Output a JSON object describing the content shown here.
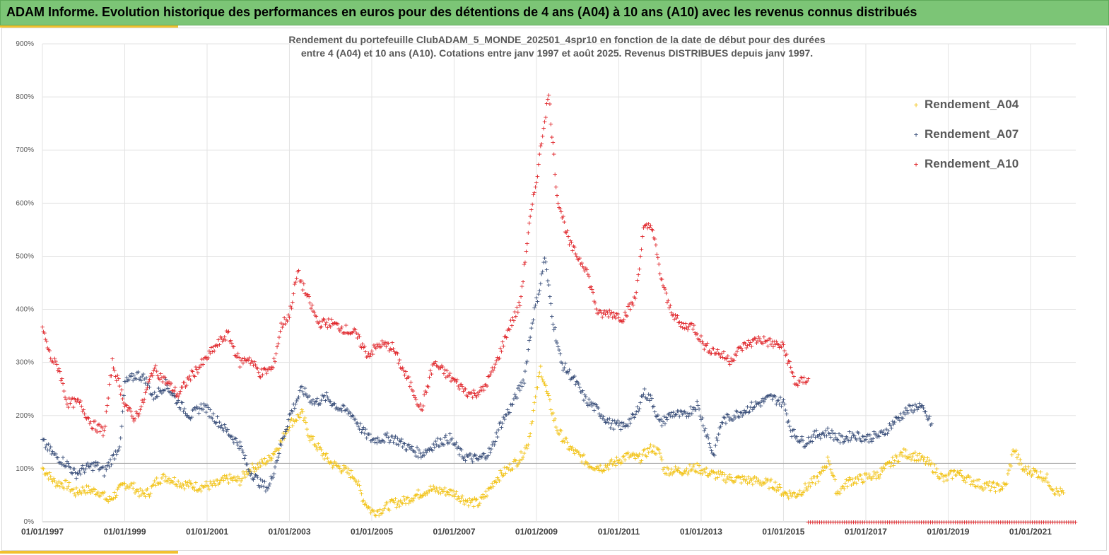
{
  "header": {
    "title": "ADAM Informe. Evolution historique des performances en euros pour des détentions de 4 ans (A04) à 10 ans (A10) avec les revenus connus distribués"
  },
  "chart_data": {
    "type": "scatter",
    "title_line1": "Rendement du portefeuille ClubADAM_5_MONDE_202501_4spr10  en fonction de la date de début pour des durées",
    "title_line2": "entre 4 (A04) et 10 ans (A10). Cotations entre janv 1997 et août 2025. Revenus DISTRIBUES depuis janv 1997.",
    "y_ticks": [
      "0%",
      "100%",
      "200%",
      "300%",
      "400%",
      "500%",
      "600%",
      "700%",
      "800%",
      "900%"
    ],
    "ylim": [
      0,
      900
    ],
    "x_ticks": [
      "01/01/1997",
      "01/01/1999",
      "01/01/2001",
      "01/01/2003",
      "01/01/2005",
      "01/01/2007",
      "01/01/2009",
      "01/01/2011",
      "01/01/2013",
      "01/01/2015",
      "01/01/2017",
      "01/01/2019",
      "01/01/2021"
    ],
    "xlim": [
      1997.0,
      2022.1
    ],
    "grid": true,
    "legend_position": "top-right",
    "series": [
      {
        "name": "Rendement_A04",
        "color": "#f2c318",
        "points": [
          [
            1997.0,
            102
          ],
          [
            1997.3,
            75
          ],
          [
            1997.6,
            70
          ],
          [
            1997.8,
            55
          ],
          [
            1998.0,
            62
          ],
          [
            1998.4,
            57
          ],
          [
            1998.6,
            40
          ],
          [
            1998.8,
            55
          ],
          [
            1999.0,
            72
          ],
          [
            1999.2,
            68
          ],
          [
            1999.4,
            52
          ],
          [
            1999.6,
            57
          ],
          [
            1999.8,
            80
          ],
          [
            2000.0,
            85
          ],
          [
            2000.4,
            72
          ],
          [
            2000.8,
            67
          ],
          [
            2001.2,
            70
          ],
          [
            2001.5,
            82
          ],
          [
            2001.8,
            78
          ],
          [
            2002.0,
            98
          ],
          [
            2002.2,
            105
          ],
          [
            2002.5,
            118
          ],
          [
            2002.8,
            152
          ],
          [
            2003.0,
            185
          ],
          [
            2003.3,
            205
          ],
          [
            2003.5,
            160
          ],
          [
            2003.8,
            130
          ],
          [
            2004.0,
            112
          ],
          [
            2004.3,
            100
          ],
          [
            2004.6,
            85
          ],
          [
            2004.8,
            42
          ],
          [
            2005.0,
            20
          ],
          [
            2005.2,
            22
          ],
          [
            2005.5,
            35
          ],
          [
            2005.8,
            40
          ],
          [
            2006.0,
            48
          ],
          [
            2006.4,
            62
          ],
          [
            2006.8,
            58
          ],
          [
            2007.0,
            55
          ],
          [
            2007.3,
            40
          ],
          [
            2007.6,
            35
          ],
          [
            2007.8,
            55
          ],
          [
            2008.0,
            80
          ],
          [
            2008.3,
            100
          ],
          [
            2008.6,
            120
          ],
          [
            2008.8,
            150
          ],
          [
            2009.0,
            245
          ],
          [
            2009.1,
            290
          ],
          [
            2009.3,
            230
          ],
          [
            2009.5,
            175
          ],
          [
            2009.8,
            140
          ],
          [
            2010.0,
            128
          ],
          [
            2010.3,
            108
          ],
          [
            2010.6,
            103
          ],
          [
            2010.9,
            112
          ],
          [
            2011.2,
            125
          ],
          [
            2011.5,
            120
          ],
          [
            2011.8,
            140
          ],
          [
            2012.0,
            130
          ],
          [
            2012.1,
            98
          ],
          [
            2012.5,
            97
          ],
          [
            2012.9,
            102
          ],
          [
            2013.2,
            92
          ],
          [
            2013.6,
            84
          ],
          [
            2014.0,
            80
          ],
          [
            2014.4,
            77
          ],
          [
            2014.8,
            70
          ],
          [
            2015.0,
            55
          ],
          [
            2015.3,
            52
          ],
          [
            2015.6,
            68
          ],
          [
            2015.9,
            88
          ],
          [
            2016.1,
            120
          ],
          [
            2016.3,
            55
          ],
          [
            2016.6,
            78
          ],
          [
            2016.9,
            82
          ],
          [
            2017.3,
            90
          ],
          [
            2017.6,
            110
          ],
          [
            2017.9,
            130
          ],
          [
            2018.2,
            125
          ],
          [
            2018.5,
            112
          ],
          [
            2018.7,
            98
          ],
          [
            2018.9,
            80
          ],
          [
            2019.2,
            95
          ],
          [
            2019.5,
            80
          ],
          [
            2019.8,
            70
          ],
          [
            2020.2,
            65
          ],
          [
            2020.4,
            68
          ],
          [
            2020.6,
            140
          ],
          [
            2020.8,
            100
          ],
          [
            2021.1,
            95
          ],
          [
            2021.4,
            82
          ],
          [
            2021.6,
            58
          ],
          [
            2021.8,
            55
          ]
        ]
      },
      {
        "name": "Rendement_A07",
        "color": "#3a4f7a",
        "points": [
          [
            1997.0,
            152
          ],
          [
            1997.3,
            125
          ],
          [
            1997.6,
            110
          ],
          [
            1997.8,
            90
          ],
          [
            1998.0,
            100
          ],
          [
            1998.3,
            108
          ],
          [
            1998.5,
            95
          ],
          [
            1998.7,
            120
          ],
          [
            1998.9,
            150
          ],
          [
            1999.0,
            262
          ],
          [
            1999.3,
            278
          ],
          [
            1999.5,
            270
          ],
          [
            1999.7,
            235
          ],
          [
            2000.0,
            260
          ],
          [
            2000.3,
            225
          ],
          [
            2000.6,
            200
          ],
          [
            2000.9,
            220
          ],
          [
            2001.2,
            195
          ],
          [
            2001.5,
            170
          ],
          [
            2001.8,
            145
          ],
          [
            2002.0,
            100
          ],
          [
            2002.3,
            72
          ],
          [
            2002.5,
            65
          ],
          [
            2002.7,
            120
          ],
          [
            2003.0,
            200
          ],
          [
            2003.3,
            250
          ],
          [
            2003.6,
            225
          ],
          [
            2003.9,
            235
          ],
          [
            2004.2,
            215
          ],
          [
            2004.5,
            205
          ],
          [
            2004.8,
            170
          ],
          [
            2005.0,
            155
          ],
          [
            2005.5,
            160
          ],
          [
            2005.9,
            140
          ],
          [
            2006.2,
            128
          ],
          [
            2006.6,
            150
          ],
          [
            2006.9,
            158
          ],
          [
            2007.2,
            125
          ],
          [
            2007.6,
            118
          ],
          [
            2007.9,
            135
          ],
          [
            2008.1,
            180
          ],
          [
            2008.4,
            220
          ],
          [
            2008.7,
            270
          ],
          [
            2008.9,
            380
          ],
          [
            2009.1,
            450
          ],
          [
            2009.2,
            500
          ],
          [
            2009.4,
            380
          ],
          [
            2009.6,
            300
          ],
          [
            2009.9,
            270
          ],
          [
            2010.2,
            230
          ],
          [
            2010.5,
            210
          ],
          [
            2010.8,
            185
          ],
          [
            2011.1,
            180
          ],
          [
            2011.4,
            200
          ],
          [
            2011.6,
            245
          ],
          [
            2011.8,
            230
          ],
          [
            2012.0,
            185
          ],
          [
            2012.3,
            205
          ],
          [
            2012.6,
            200
          ],
          [
            2012.9,
            222
          ],
          [
            2013.1,
            175
          ],
          [
            2013.3,
            125
          ],
          [
            2013.5,
            190
          ],
          [
            2013.9,
            205
          ],
          [
            2014.3,
            220
          ],
          [
            2014.7,
            235
          ],
          [
            2015.0,
            225
          ],
          [
            2015.2,
            170
          ],
          [
            2015.5,
            150
          ],
          [
            2015.8,
            165
          ],
          [
            2016.1,
            170
          ],
          [
            2016.4,
            155
          ],
          [
            2016.7,
            165
          ],
          [
            2017.0,
            158
          ],
          [
            2017.4,
            165
          ],
          [
            2017.7,
            190
          ],
          [
            2018.0,
            210
          ],
          [
            2018.3,
            220
          ],
          [
            2018.6,
            185
          ]
        ]
      },
      {
        "name": "Rendement_A10",
        "color": "#e0262b",
        "points": [
          [
            1997.0,
            365
          ],
          [
            1997.2,
            310
          ],
          [
            1997.4,
            290
          ],
          [
            1997.6,
            225
          ],
          [
            1997.9,
            225
          ],
          [
            1998.2,
            185
          ],
          [
            1998.5,
            170
          ],
          [
            1998.7,
            300
          ],
          [
            1999.0,
            225
          ],
          [
            1999.2,
            195
          ],
          [
            1999.4,
            215
          ],
          [
            1999.7,
            290
          ],
          [
            2000.0,
            265
          ],
          [
            2000.3,
            240
          ],
          [
            2000.6,
            275
          ],
          [
            2000.9,
            300
          ],
          [
            2001.2,
            330
          ],
          [
            2001.5,
            355
          ],
          [
            2001.8,
            300
          ],
          [
            2002.0,
            310
          ],
          [
            2002.3,
            280
          ],
          [
            2002.6,
            290
          ],
          [
            2002.8,
            370
          ],
          [
            2003.0,
            390
          ],
          [
            2003.2,
            470
          ],
          [
            2003.4,
            430
          ],
          [
            2003.7,
            375
          ],
          [
            2004.0,
            375
          ],
          [
            2004.3,
            365
          ],
          [
            2004.6,
            355
          ],
          [
            2004.9,
            315
          ],
          [
            2005.2,
            335
          ],
          [
            2005.5,
            330
          ],
          [
            2005.8,
            280
          ],
          [
            2006.0,
            250
          ],
          [
            2006.2,
            210
          ],
          [
            2006.5,
            300
          ],
          [
            2006.8,
            280
          ],
          [
            2007.1,
            260
          ],
          [
            2007.4,
            240
          ],
          [
            2007.7,
            248
          ],
          [
            2008.0,
            295
          ],
          [
            2008.3,
            360
          ],
          [
            2008.6,
            410
          ],
          [
            2008.8,
            545
          ],
          [
            2009.0,
            645
          ],
          [
            2009.2,
            760
          ],
          [
            2009.3,
            805
          ],
          [
            2009.5,
            615
          ],
          [
            2009.8,
            525
          ],
          [
            2010.0,
            500
          ],
          [
            2010.2,
            480
          ],
          [
            2010.5,
            390
          ],
          [
            2010.8,
            395
          ],
          [
            2011.1,
            385
          ],
          [
            2011.4,
            420
          ],
          [
            2011.6,
            550
          ],
          [
            2011.8,
            560
          ],
          [
            2012.0,
            470
          ],
          [
            2012.2,
            410
          ],
          [
            2012.5,
            370
          ],
          [
            2012.8,
            370
          ],
          [
            2013.1,
            330
          ],
          [
            2013.4,
            320
          ],
          [
            2013.7,
            305
          ],
          [
            2014.0,
            330
          ],
          [
            2014.4,
            345
          ],
          [
            2014.8,
            335
          ],
          [
            2015.0,
            330
          ],
          [
            2015.3,
            260
          ],
          [
            2015.6,
            270
          ]
        ]
      }
    ],
    "baseline_series_name": "Rendement_A10",
    "baseline_x_range": [
      2015.6,
      2022.1
    ],
    "baseline_value": 0
  }
}
